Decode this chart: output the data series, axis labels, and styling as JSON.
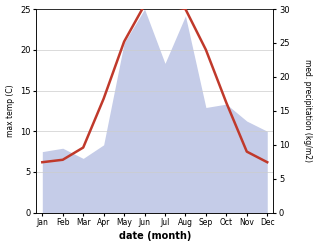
{
  "months": [
    "Jan",
    "Feb",
    "Mar",
    "Apr",
    "May",
    "Jun",
    "Jul",
    "Aug",
    "Sep",
    "Oct",
    "Nov",
    "Dec"
  ],
  "temperature": [
    6.2,
    6.5,
    8.0,
    14.0,
    21.0,
    25.5,
    25.5,
    25.0,
    20.0,
    13.5,
    7.5,
    6.2
  ],
  "precipitation": [
    9.0,
    9.5,
    8.0,
    10.0,
    25.0,
    30.0,
    22.0,
    29.0,
    15.5,
    16.0,
    13.5,
    12.0
  ],
  "temp_color": "#c0392b",
  "precip_fill_color": "#c5cce8",
  "precip_edge_color": "#b0badc",
  "temp_ylim": [
    0,
    25
  ],
  "precip_ylim": [
    0,
    30
  ],
  "temp_yticks": [
    0,
    5,
    10,
    15,
    20,
    25
  ],
  "precip_yticks": [
    0,
    5,
    10,
    15,
    20,
    25,
    30
  ],
  "xlabel": "date (month)",
  "ylabel_left": "max temp (C)",
  "ylabel_right": "med. precipitation (kg/m2)",
  "grid_color": "#cccccc",
  "linewidth": 1.8
}
